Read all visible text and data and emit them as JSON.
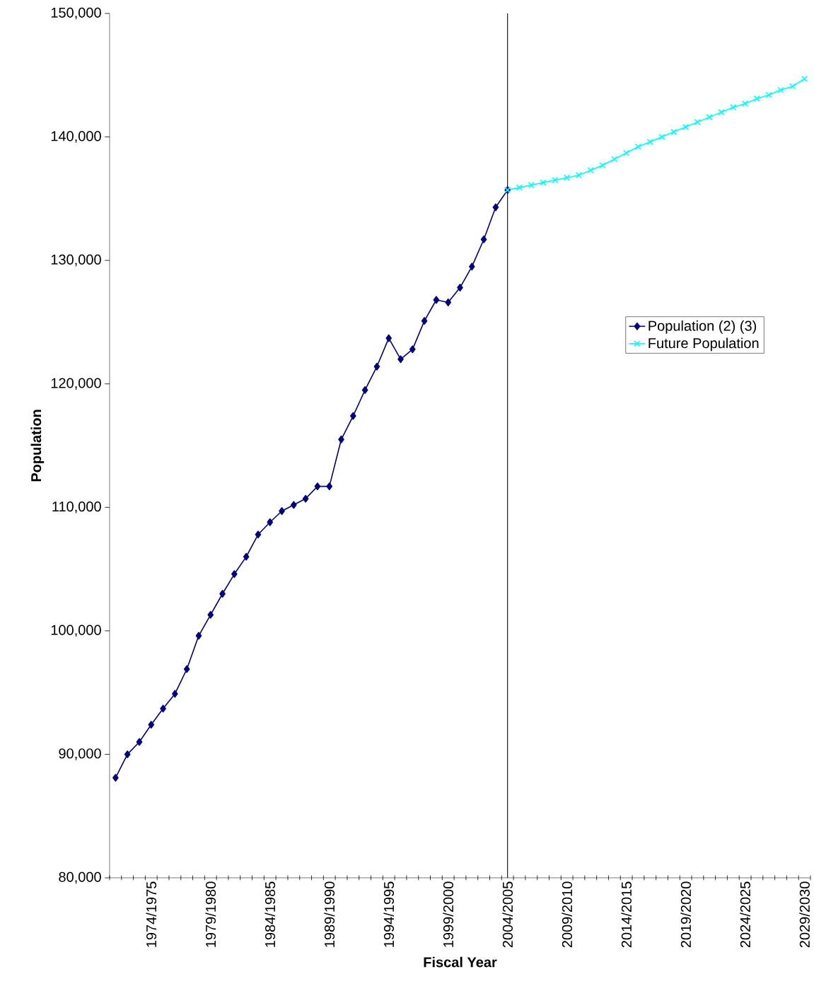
{
  "chart_data": {
    "type": "line",
    "xlabel": "Fiscal Year",
    "ylabel": "Population",
    "categories": [
      null,
      null,
      null,
      "1974/1975",
      null,
      null,
      null,
      null,
      "1979/1980",
      null,
      null,
      null,
      null,
      "1984/1985",
      null,
      null,
      null,
      null,
      "1989/1990",
      null,
      null,
      null,
      null,
      "1994/1995",
      null,
      null,
      null,
      null,
      "1999/2000",
      null,
      null,
      null,
      null,
      "2004/2005",
      null,
      null,
      null,
      null,
      "2009/2010",
      null,
      null,
      null,
      null,
      "2014/2015",
      null,
      null,
      null,
      null,
      "2019/2020",
      null,
      null,
      null,
      null,
      "2024/2025",
      null,
      null,
      null,
      null,
      "2029/2030"
    ],
    "series": [
      {
        "name": "Population (2) (3)",
        "color": "#000080",
        "marker": "diamond",
        "values": [
          88100,
          90000,
          91000,
          92400,
          93700,
          94900,
          96900,
          99600,
          101300,
          103000,
          104600,
          106000,
          107800,
          108800,
          109700,
          110200,
          110700,
          111700,
          111700,
          115500,
          117400,
          119500,
          121400,
          123700,
          122000,
          122800,
          125100,
          126800,
          126600,
          127800,
          129500,
          131700,
          134300,
          135700,
          null,
          null,
          null,
          null,
          null,
          null,
          null,
          null,
          null,
          null,
          null,
          null,
          null,
          null,
          null,
          null,
          null,
          null,
          null,
          null,
          null,
          null,
          null,
          null,
          null
        ]
      },
      {
        "name": "Future Population",
        "color": "#00ffff",
        "marker": "cross",
        "values": [
          null,
          null,
          null,
          null,
          null,
          null,
          null,
          null,
          null,
          null,
          null,
          null,
          null,
          null,
          null,
          null,
          null,
          null,
          null,
          null,
          null,
          null,
          null,
          null,
          null,
          null,
          null,
          null,
          null,
          null,
          null,
          null,
          null,
          135700,
          135900,
          136100,
          136300,
          136500,
          136700,
          136900,
          137300,
          137700,
          138200,
          138700,
          139200,
          139600,
          140000,
          140400,
          140800,
          141200,
          141600,
          142000,
          142400,
          142700,
          143100,
          143400,
          143800,
          144100,
          144700
        ]
      }
    ],
    "ylim": [
      80000,
      150000
    ],
    "yticks": [
      {
        "value": 80000,
        "label": "80,000"
      },
      {
        "value": 90000,
        "label": "90,000"
      },
      {
        "value": 100000,
        "label": "100,000"
      },
      {
        "value": 110000,
        "label": "110,000"
      },
      {
        "value": 120000,
        "label": "120,000"
      },
      {
        "value": 130000,
        "label": "130,000"
      },
      {
        "value": 140000,
        "label": "140,000"
      },
      {
        "value": 150000,
        "label": "150,000"
      }
    ],
    "ref_lines": [
      {
        "axis": "x",
        "value": "2004/2005",
        "color": "#000000"
      }
    ],
    "legend": "right",
    "grid": false
  }
}
